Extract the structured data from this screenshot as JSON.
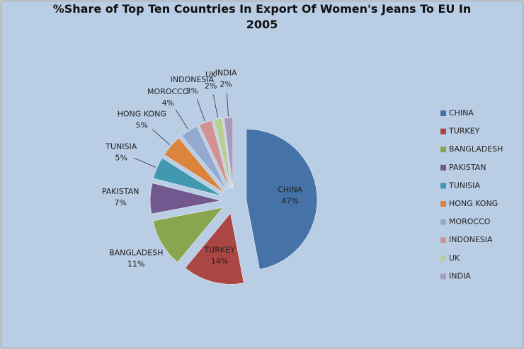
{
  "chart_data": {
    "type": "pie",
    "title": "%Share of Top Ten Countries In Export Of Women's Jeans To EU In 2005",
    "categories": [
      "CHINA",
      "TURKEY",
      "BANGLADESH",
      "PAKISTAN",
      "TUNISIA",
      "HONG KONG",
      "MOROCCO",
      "INDONESIA",
      "UK",
      "INDIA"
    ],
    "values": [
      47,
      14,
      11,
      7,
      5,
      5,
      4,
      3,
      2,
      2
    ],
    "value_labels": [
      "47%",
      "14%",
      "11%",
      "7%",
      "5%",
      "5%",
      "4%",
      "3%",
      "2%",
      "2%"
    ],
    "colors": [
      "#4572a7",
      "#aa4643",
      "#89a54e",
      "#71588f",
      "#4198af",
      "#db843d",
      "#93a9cf",
      "#d19392",
      "#b9cd96",
      "#a99bbd"
    ],
    "legend": "right"
  }
}
